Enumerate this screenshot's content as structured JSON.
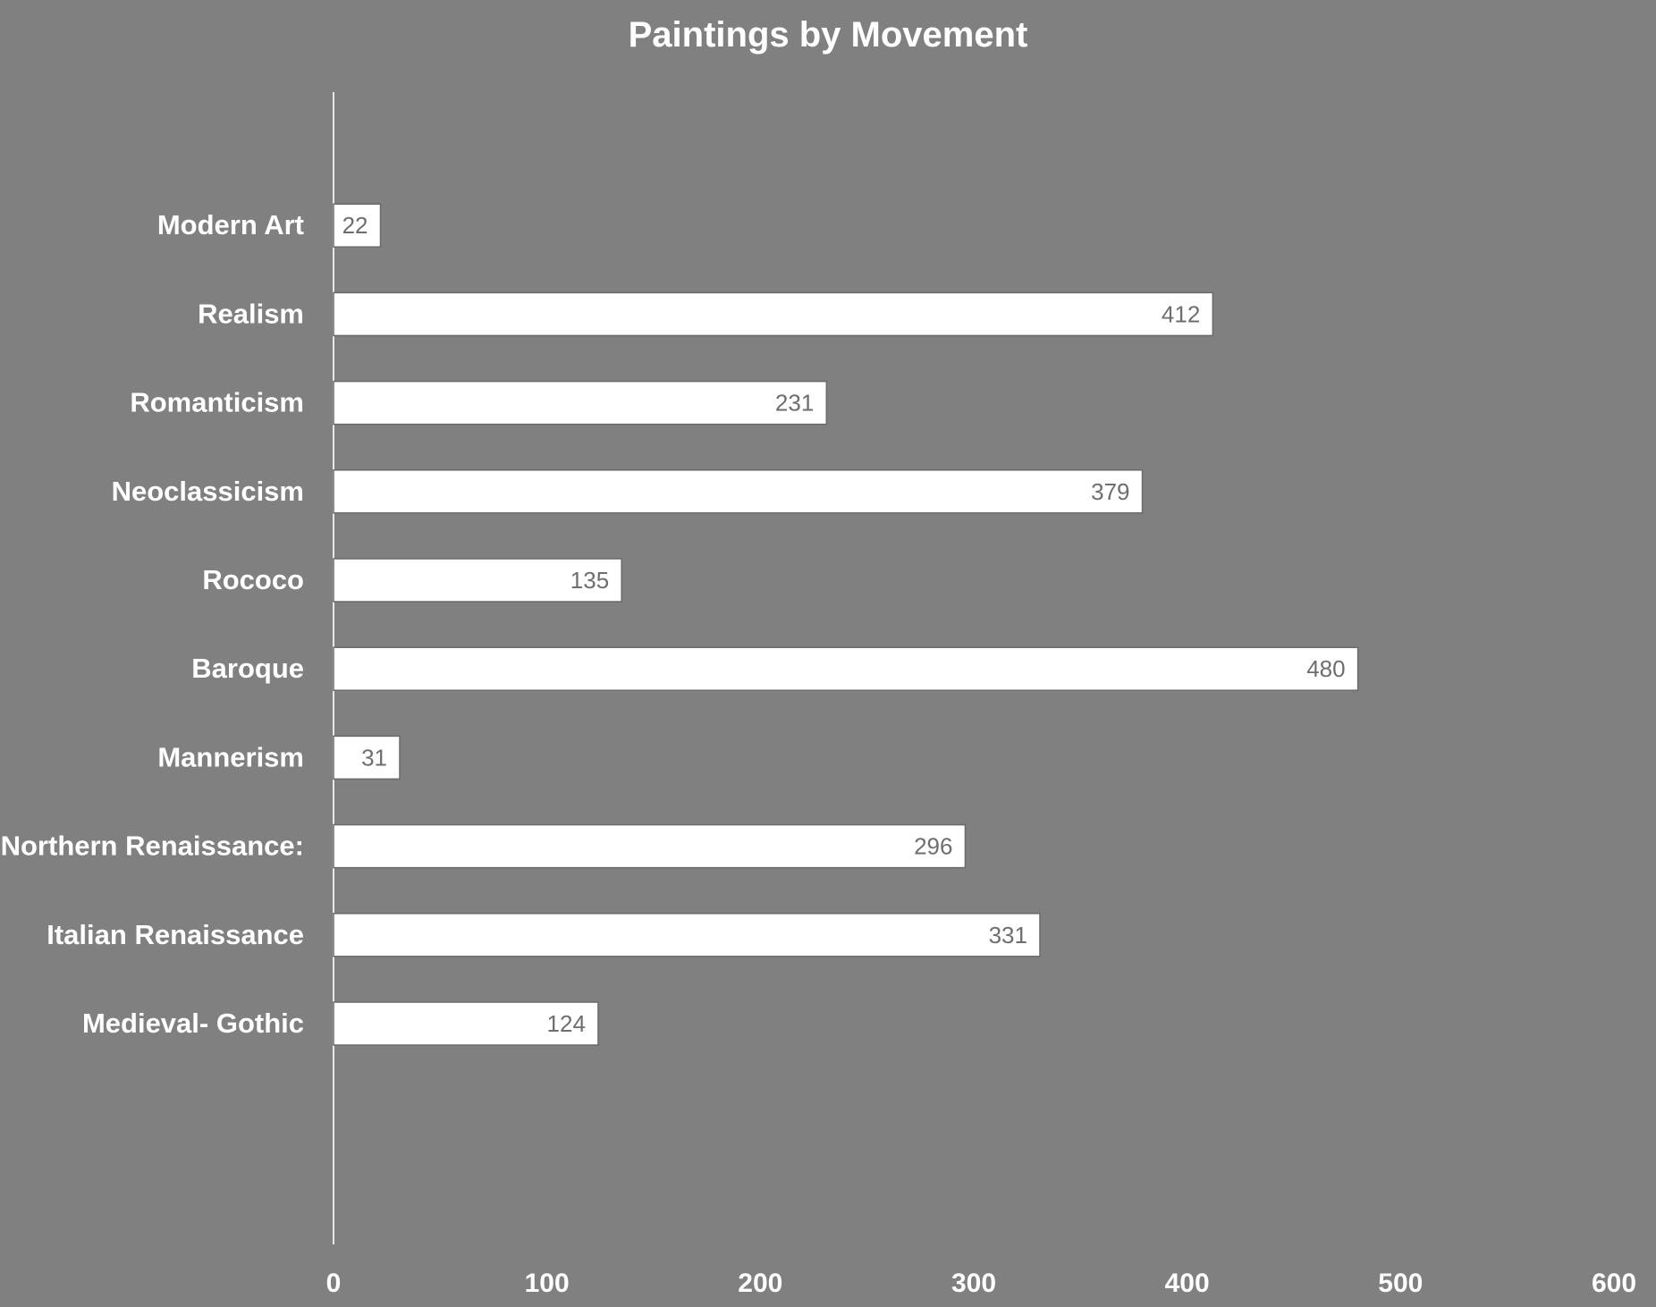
{
  "chart_data": {
    "type": "bar",
    "orientation": "horizontal",
    "title": "Paintings  by Movement",
    "xlabel": "",
    "ylabel": "",
    "categories": [
      "Medieval- Gothic",
      "Italian Renaissance",
      "Northern Renaissance:",
      "Mannerism",
      "Baroque",
      "Rococo",
      "Neoclassicism",
      "Romanticism",
      "Realism",
      "Modern Art"
    ],
    "values": [
      124,
      331,
      296,
      31,
      480,
      135,
      379,
      231,
      412,
      22
    ],
    "xlim": [
      0,
      600
    ],
    "xticks": [
      "0",
      "100",
      "200",
      "300",
      "400",
      "500",
      "600"
    ],
    "grid": false,
    "legend": "none",
    "data_labels": true,
    "colors": {
      "background": "#808080",
      "bar_fill": "#ffffff",
      "text": "#ffffff",
      "data_label": "#6e6e6e"
    }
  }
}
